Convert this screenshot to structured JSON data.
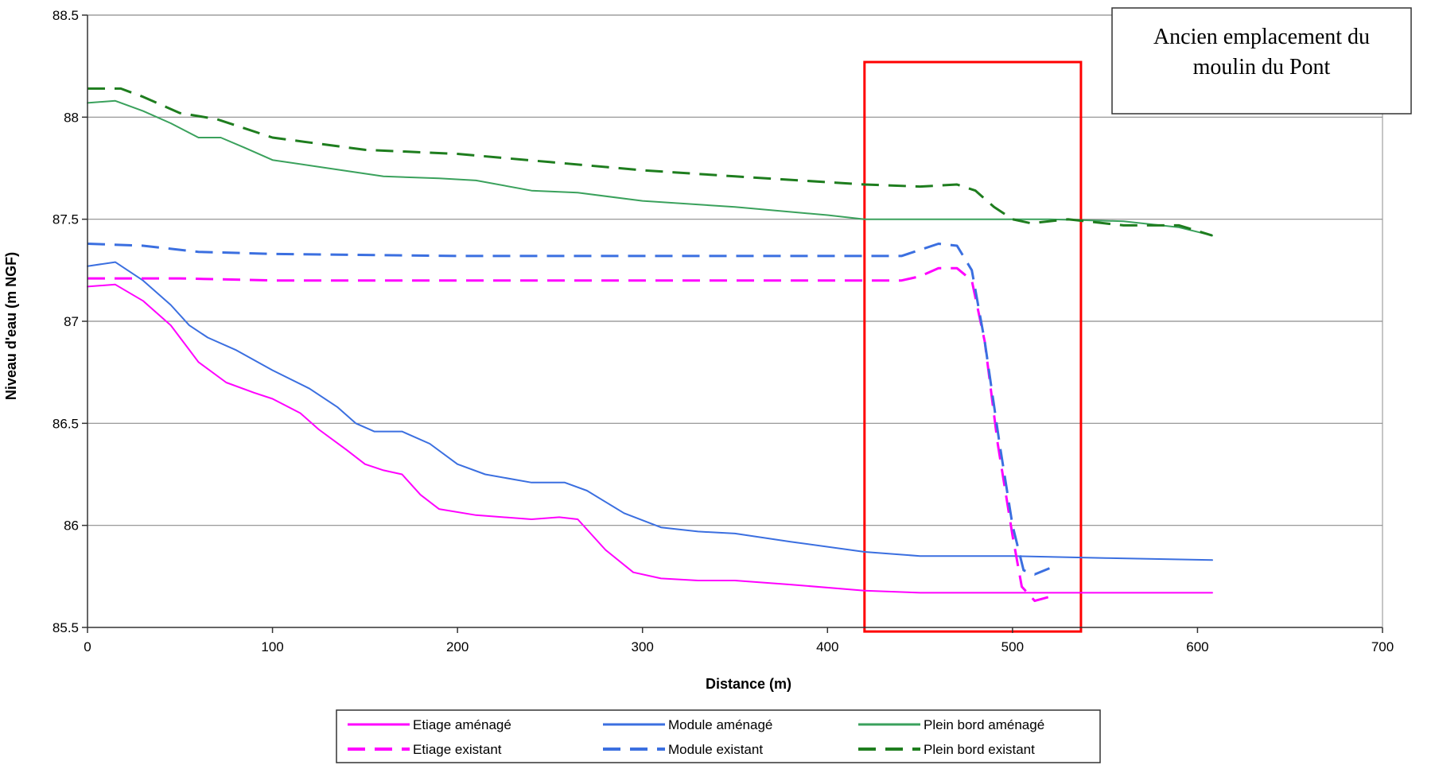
{
  "chart_data": {
    "type": "line",
    "title": "",
    "xlabel": "Distance (m)",
    "ylabel": "Niveau d'eau (m NGF)",
    "xlim": [
      0,
      700
    ],
    "ylim": [
      85.5,
      88.5
    ],
    "x_ticks": [
      0,
      100,
      200,
      300,
      400,
      500,
      600,
      700
    ],
    "y_ticks": [
      85.5,
      86,
      86.5,
      87,
      87.5,
      88,
      88.5
    ],
    "y_tick_labels": [
      "85.5",
      "86",
      "86.5",
      "87",
      "87.5",
      "88",
      "88.5"
    ],
    "grid": "horizontal",
    "legend_position": "bottom",
    "annotation": {
      "lines": [
        "Ancien emplacement du",
        "moulin du Pont"
      ]
    },
    "highlight_box": {
      "x_range": [
        420,
        537
      ],
      "y_range": [
        85.48,
        88.27
      ],
      "color": "#ff0000"
    },
    "series": [
      {
        "name": "Etiage aménagé",
        "color": "#ff00ff",
        "dash": "solid",
        "width": 2,
        "points": [
          [
            0,
            87.17
          ],
          [
            15,
            87.18
          ],
          [
            30,
            87.1
          ],
          [
            45,
            86.98
          ],
          [
            55,
            86.86
          ],
          [
            60,
            86.8
          ],
          [
            75,
            86.7
          ],
          [
            90,
            86.65
          ],
          [
            100,
            86.62
          ],
          [
            115,
            86.55
          ],
          [
            125,
            86.47
          ],
          [
            140,
            86.37
          ],
          [
            150,
            86.3
          ],
          [
            160,
            86.27
          ],
          [
            170,
            86.25
          ],
          [
            180,
            86.15
          ],
          [
            190,
            86.08
          ],
          [
            210,
            86.05
          ],
          [
            240,
            86.03
          ],
          [
            255,
            86.04
          ],
          [
            265,
            86.03
          ],
          [
            280,
            85.88
          ],
          [
            295,
            85.77
          ],
          [
            310,
            85.74
          ],
          [
            330,
            85.73
          ],
          [
            350,
            85.73
          ],
          [
            380,
            85.71
          ],
          [
            420,
            85.68
          ],
          [
            450,
            85.67
          ],
          [
            500,
            85.67
          ],
          [
            550,
            85.67
          ],
          [
            608,
            85.67
          ]
        ]
      },
      {
        "name": "Module aménagé",
        "color": "#3b6fe0",
        "dash": "solid",
        "width": 2,
        "points": [
          [
            0,
            87.27
          ],
          [
            15,
            87.29
          ],
          [
            30,
            87.2
          ],
          [
            45,
            87.08
          ],
          [
            55,
            86.98
          ],
          [
            65,
            86.92
          ],
          [
            80,
            86.86
          ],
          [
            100,
            86.76
          ],
          [
            120,
            86.67
          ],
          [
            135,
            86.58
          ],
          [
            145,
            86.5
          ],
          [
            155,
            86.46
          ],
          [
            170,
            86.46
          ],
          [
            185,
            86.4
          ],
          [
            200,
            86.3
          ],
          [
            215,
            86.25
          ],
          [
            240,
            86.21
          ],
          [
            258,
            86.21
          ],
          [
            270,
            86.17
          ],
          [
            290,
            86.06
          ],
          [
            310,
            85.99
          ],
          [
            330,
            85.97
          ],
          [
            350,
            85.96
          ],
          [
            380,
            85.92
          ],
          [
            420,
            85.87
          ],
          [
            450,
            85.85
          ],
          [
            500,
            85.85
          ],
          [
            550,
            85.84
          ],
          [
            608,
            85.83
          ]
        ]
      },
      {
        "name": "Plein bord aménagé",
        "color": "#3aa15c",
        "dash": "solid",
        "width": 2,
        "points": [
          [
            0,
            88.07
          ],
          [
            15,
            88.08
          ],
          [
            30,
            88.03
          ],
          [
            45,
            87.97
          ],
          [
            60,
            87.9
          ],
          [
            72,
            87.9
          ],
          [
            85,
            87.85
          ],
          [
            100,
            87.79
          ],
          [
            130,
            87.75
          ],
          [
            160,
            87.71
          ],
          [
            190,
            87.7
          ],
          [
            210,
            87.69
          ],
          [
            240,
            87.64
          ],
          [
            265,
            87.63
          ],
          [
            300,
            87.59
          ],
          [
            350,
            87.56
          ],
          [
            400,
            87.52
          ],
          [
            420,
            87.5
          ],
          [
            480,
            87.5
          ],
          [
            520,
            87.5
          ],
          [
            560,
            87.49
          ],
          [
            590,
            87.46
          ],
          [
            608,
            87.42
          ]
        ]
      },
      {
        "name": "Etiage existant",
        "color": "#ff00ff",
        "dash": "dashed",
        "width": 3,
        "points": [
          [
            0,
            87.21
          ],
          [
            50,
            87.21
          ],
          [
            100,
            87.2
          ],
          [
            200,
            87.2
          ],
          [
            300,
            87.2
          ],
          [
            400,
            87.2
          ],
          [
            440,
            87.2
          ],
          [
            450,
            87.22
          ],
          [
            460,
            87.26
          ],
          [
            470,
            87.26
          ],
          [
            478,
            87.2
          ],
          [
            485,
            86.9
          ],
          [
            492,
            86.4
          ],
          [
            500,
            85.95
          ],
          [
            505,
            85.7
          ],
          [
            512,
            85.63
          ],
          [
            520,
            85.65
          ]
        ]
      },
      {
        "name": "Module existant",
        "color": "#3b6fe0",
        "dash": "dashed",
        "width": 3,
        "points": [
          [
            0,
            87.38
          ],
          [
            30,
            87.37
          ],
          [
            60,
            87.34
          ],
          [
            100,
            87.33
          ],
          [
            200,
            87.32
          ],
          [
            300,
            87.32
          ],
          [
            400,
            87.32
          ],
          [
            440,
            87.32
          ],
          [
            450,
            87.35
          ],
          [
            460,
            87.38
          ],
          [
            470,
            87.37
          ],
          [
            478,
            87.25
          ],
          [
            485,
            86.9
          ],
          [
            493,
            86.4
          ],
          [
            500,
            86.0
          ],
          [
            506,
            85.78
          ],
          [
            512,
            85.76
          ],
          [
            520,
            85.79
          ]
        ]
      },
      {
        "name": "Plein bord existant",
        "color": "#1e7d1e",
        "dash": "dashed",
        "width": 3,
        "points": [
          [
            0,
            88.14
          ],
          [
            18,
            88.14
          ],
          [
            30,
            88.1
          ],
          [
            50,
            88.02
          ],
          [
            70,
            87.99
          ],
          [
            100,
            87.9
          ],
          [
            150,
            87.84
          ],
          [
            200,
            87.82
          ],
          [
            250,
            87.78
          ],
          [
            300,
            87.74
          ],
          [
            350,
            87.71
          ],
          [
            420,
            87.67
          ],
          [
            450,
            87.66
          ],
          [
            470,
            87.67
          ],
          [
            480,
            87.64
          ],
          [
            490,
            87.56
          ],
          [
            500,
            87.5
          ],
          [
            510,
            87.48
          ],
          [
            530,
            87.5
          ],
          [
            560,
            87.47
          ],
          [
            590,
            87.47
          ],
          [
            608,
            87.42
          ]
        ]
      }
    ]
  }
}
